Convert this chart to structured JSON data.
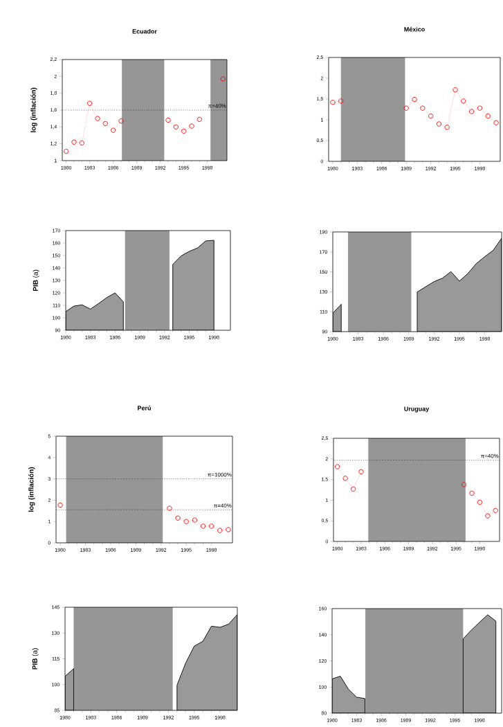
{
  "chart_data": [
    {
      "type": "line",
      "title": "Ecuador",
      "ylabel": "log (inflación)",
      "marker": "circle",
      "color": "#ff0000",
      "x": [
        1980,
        1981,
        1982,
        1983,
        1984,
        1985,
        1986,
        1987,
        1988,
        1989,
        1990,
        1991,
        1992,
        1993,
        1994,
        1995,
        1996,
        1997,
        1998,
        1999,
        2000
      ],
      "values": [
        1.11,
        1.22,
        1.21,
        1.68,
        1.5,
        1.44,
        1.36,
        1.47,
        null,
        null,
        null,
        null,
        null,
        1.48,
        1.4,
        1.35,
        1.41,
        1.49,
        null,
        null,
        1.97
      ],
      "xlim": [
        1979.5,
        2000.5
      ],
      "xticks": [
        1980,
        1983,
        1986,
        1989,
        1992,
        1995,
        1998
      ],
      "ylim": [
        1,
        2.2
      ],
      "yticks": [
        1,
        {
          "value": 1.2,
          "label": "1,2"
        },
        {
          "value": 1.4,
          "label": "1,4"
        },
        {
          "value": 1.6,
          "label": "1,6"
        },
        {
          "value": 1.8,
          "label": "1,8"
        },
        2,
        {
          "value": 2.2,
          "label": "2,2"
        }
      ],
      "ref_lines": [
        {
          "axis": "y",
          "value": 1.6,
          "line_style": "dotted"
        }
      ],
      "annotations": [
        {
          "text": "π=40%",
          "y": 1.6
        }
      ],
      "bands": [
        {
          "axis": "x",
          "from": 1987.1,
          "to": 1992.5,
          "color": "#969696"
        },
        {
          "axis": "x",
          "from": 1998.4,
          "to": 2000.5,
          "color": "#969696"
        }
      ]
    },
    {
      "type": "line",
      "title": "México",
      "marker": "circle",
      "color": "#ff0000",
      "x": [
        1980,
        1981,
        1982,
        1983,
        1984,
        1985,
        1986,
        1987,
        1988,
        1989,
        1990,
        1991,
        1992,
        1993,
        1994,
        1995,
        1996,
        1997,
        1998,
        1999,
        2000
      ],
      "values": [
        1.42,
        1.45,
        null,
        null,
        null,
        null,
        null,
        null,
        null,
        1.28,
        1.49,
        1.28,
        1.09,
        0.9,
        0.82,
        1.72,
        1.45,
        1.2,
        1.28,
        1.09,
        0.93
      ],
      "xlim": [
        1979.5,
        2000.5
      ],
      "xticks": [
        1980,
        1983,
        1986,
        1989,
        1992,
        1995,
        1998
      ],
      "ylim": [
        0,
        2.5
      ],
      "yticks": [
        0,
        {
          "value": 0.5,
          "label": "0,5"
        },
        1,
        {
          "value": 1.5,
          "label": "1,5"
        },
        2,
        {
          "value": 2.5,
          "label": "2,5"
        }
      ],
      "bands": [
        {
          "axis": "x",
          "from": 1981.0,
          "to": 1988.85,
          "color": "#969696"
        }
      ]
    },
    {
      "type": "area",
      "ylabel": "**PIB** (a)",
      "color": "#999999",
      "x": [
        1980,
        1981,
        1982,
        1983,
        1984,
        1985,
        1986,
        1987,
        1988,
        1989,
        1990,
        1991,
        1992,
        1993,
        1994,
        1995,
        1996,
        1997,
        1998
      ],
      "values": [
        105,
        109.4,
        110.4,
        107,
        111.5,
        116.3,
        120,
        112.8,
        null,
        null,
        null,
        null,
        null,
        142.8,
        149.6,
        153.3,
        156,
        161.7,
        162.2
      ],
      "xlim": [
        1980,
        2000
      ],
      "xticks": [
        1980,
        1983,
        1986,
        1989,
        1992,
        1995,
        1998
      ],
      "ylim": [
        90,
        170
      ],
      "yticks": [
        90,
        100,
        110,
        120,
        130,
        140,
        150,
        160,
        170
      ],
      "bands": [
        {
          "axis": "x",
          "from": 1987.2,
          "to": 1992.6,
          "color": "#969696"
        }
      ]
    },
    {
      "type": "area",
      "color": "#999999",
      "x": [
        1980,
        1981,
        1982,
        1983,
        1984,
        1985,
        1986,
        1987,
        1988,
        1989,
        1990,
        1991,
        1992,
        1993,
        1994,
        1995,
        1996,
        1997,
        1998,
        1999,
        2000
      ],
      "values": [
        108.5,
        117.5,
        null,
        null,
        null,
        null,
        null,
        null,
        null,
        null,
        129.8,
        135,
        140.2,
        143.7,
        150.2,
        140.7,
        148.3,
        158.3,
        165.2,
        171.5,
        183.7
      ],
      "xlim": [
        1980,
        2000
      ],
      "xticks": [
        1980,
        1983,
        1986,
        1989,
        1992,
        1995,
        1998
      ],
      "ylim": [
        90,
        190
      ],
      "yticks": [
        90,
        110,
        130,
        150,
        170,
        190
      ],
      "bands": [
        {
          "axis": "x",
          "from": 1981.8,
          "to": 1989.3,
          "color": "#969696"
        }
      ]
    },
    {
      "type": "line",
      "title": "Perú",
      "ylabel": "log (inflación)",
      "marker": "circle",
      "color": "#ff0000",
      "x": [
        1980,
        1981,
        1982,
        1983,
        1984,
        1985,
        1986,
        1987,
        1988,
        1989,
        1990,
        1991,
        1992,
        1993,
        1994,
        1995,
        1996,
        1997,
        1998,
        1999,
        2000
      ],
      "values": [
        1.77,
        null,
        null,
        null,
        null,
        null,
        null,
        null,
        null,
        null,
        null,
        null,
        null,
        1.62,
        1.16,
        1.0,
        1.07,
        0.78,
        0.78,
        0.58,
        0.62
      ],
      "xlim": [
        1979.5,
        2000.5
      ],
      "xticks": [
        1980,
        1983,
        1986,
        1989,
        1992,
        1995,
        1998
      ],
      "ylim": [
        0,
        5
      ],
      "yticks": [
        0,
        1,
        2,
        3,
        4,
        5
      ],
      "ref_lines": [
        {
          "axis": "y",
          "value": 3,
          "line_style": "dotted"
        },
        {
          "axis": "y",
          "value": 1.55,
          "line_style": "dotted"
        }
      ],
      "annotations": [
        {
          "text": "π=1000%",
          "y": 3
        },
        {
          "text": "π=40%",
          "y": 1.55
        }
      ],
      "bands": [
        {
          "axis": "x",
          "from": 1980.7,
          "to": 1992.2,
          "color": "#969696"
        }
      ]
    },
    {
      "type": "line",
      "title": "Uruguay",
      "marker": "circle",
      "color": "#ff0000",
      "x": [
        1980,
        1981,
        1982,
        1983,
        1984,
        1985,
        1986,
        1987,
        1988,
        1989,
        1990,
        1991,
        1992,
        1993,
        1994,
        1995,
        1996,
        1997,
        1998,
        1999,
        2000
      ],
      "values": [
        1.81,
        1.53,
        1.27,
        1.69,
        null,
        null,
        null,
        null,
        null,
        null,
        null,
        null,
        null,
        null,
        null,
        null,
        1.38,
        1.17,
        0.95,
        0.62,
        0.75
      ],
      "xlim": [
        1979.5,
        2000.5
      ],
      "xticks": [
        1980,
        1983,
        1986,
        1989,
        1992,
        1995,
        1998
      ],
      "ylim": [
        0,
        2.5
      ],
      "yticks": [
        0,
        {
          "value": 0.5,
          "label": "0,5"
        },
        1,
        {
          "value": 1.5,
          "label": "1,5"
        },
        2,
        {
          "value": 2.5,
          "label": "2,5"
        }
      ],
      "ref_lines": [
        {
          "axis": "y",
          "value": 1.97,
          "line_style": "dotted"
        }
      ],
      "annotations": [
        {
          "text": "π=40%",
          "y": 1.97
        }
      ],
      "bands": [
        {
          "axis": "x",
          "from": 1983.9,
          "to": 1996.2,
          "color": "#969696"
        }
      ]
    },
    {
      "type": "area",
      "ylabel": "**PIB** (a)",
      "color": "#999999",
      "x": [
        1980,
        1981,
        1982,
        1983,
        1984,
        1985,
        1986,
        1987,
        1988,
        1989,
        1990,
        1991,
        1992,
        1993,
        1994,
        1995,
        1996,
        1997,
        1998,
        1999,
        2000
      ],
      "values": [
        104.8,
        109.3,
        null,
        null,
        null,
        null,
        null,
        null,
        null,
        null,
        null,
        null,
        null,
        99.7,
        112.5,
        122.4,
        125.2,
        134,
        133.3,
        135.2,
        140.8
      ],
      "xlim": [
        1980,
        2000
      ],
      "xticks": [
        1980,
        1983,
        1986,
        1989,
        1992,
        1995,
        1998
      ],
      "ylim": [
        85,
        145
      ],
      "yticks": [
        85,
        100,
        115,
        130,
        145
      ],
      "bands": [
        {
          "axis": "x",
          "from": 1981.0,
          "to": 1992.5,
          "color": "#969696"
        }
      ]
    },
    {
      "type": "area",
      "color": "#999999",
      "x": [
        1980,
        1981,
        1982,
        1983,
        1984,
        1985,
        1986,
        1987,
        1988,
        1989,
        1990,
        1991,
        1992,
        1993,
        1994,
        1995,
        1996,
        1997,
        1998,
        1999,
        2000
      ],
      "values": [
        106.2,
        108.3,
        98.3,
        92.2,
        91.2,
        null,
        null,
        null,
        null,
        null,
        null,
        null,
        null,
        null,
        null,
        null,
        136.9,
        143.5,
        149.5,
        155.3,
        150.4
      ],
      "xlim": [
        1980,
        2000.7
      ],
      "xticks": [
        1980,
        1983,
        1986,
        1989,
        1992,
        1995,
        1998
      ],
      "ylim": [
        80,
        160
      ],
      "yticks": [
        80,
        100,
        120,
        140,
        160
      ],
      "bands": [
        {
          "axis": "x",
          "from": 1984.06,
          "to": 1996.0,
          "color": "#969696"
        }
      ]
    }
  ]
}
